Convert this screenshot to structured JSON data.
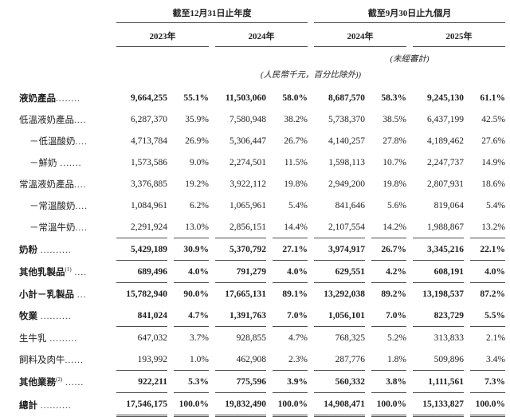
{
  "table": {
    "period_groups": [
      {
        "title": "截至12月31日止年度",
        "years": [
          "2023年",
          "2024年"
        ]
      },
      {
        "title": "截至9月30日止九個月",
        "years": [
          "2024年",
          "2025年"
        ]
      }
    ],
    "unaudited_note": "(未經審計)",
    "currency_note": "(人民幣千元，百分比除外))",
    "rows": [
      {
        "label": "液奶產品",
        "dots": "........",
        "style": "bold",
        "indent": 0,
        "underline": "none",
        "values": [
          "9,664,255",
          "55.1%",
          "11,503,060",
          "58.0%",
          "8,687,570",
          "58.3%",
          "9,245,130",
          "61.1%"
        ]
      },
      {
        "label": "低溫液奶產品",
        "dots": "....",
        "style": "normal",
        "indent": 0,
        "underline": "none",
        "values": [
          "6,287,370",
          "35.9%",
          "7,580,948",
          "38.2%",
          "5,738,370",
          "38.5%",
          "6,437,199",
          "42.5%"
        ]
      },
      {
        "label": "－低溫酸奶",
        "dots": "....",
        "style": "normal",
        "indent": 1,
        "underline": "none",
        "values": [
          "4,713,784",
          "26.9%",
          "5,306,447",
          "26.7%",
          "4,140,257",
          "27.8%",
          "4,189,462",
          "27.6%"
        ]
      },
      {
        "label": "－鮮奶",
        "dots": " .......",
        "style": "normal",
        "indent": 1,
        "underline": "none",
        "values": [
          "1,573,586",
          "9.0%",
          "2,274,501",
          "11.5%",
          "1,598,113",
          "10.7%",
          "2,247,737",
          "14.9%"
        ]
      },
      {
        "label": "常溫液奶產品",
        "dots": "....",
        "style": "normal",
        "indent": 0,
        "underline": "none",
        "values": [
          "3,376,885",
          "19.2%",
          "3,922,112",
          "19.8%",
          "2,949,200",
          "19.8%",
          "2,807,931",
          "18.6%"
        ]
      },
      {
        "label": "－常溫酸奶",
        "dots": "....",
        "style": "normal",
        "indent": 1,
        "underline": "none",
        "values": [
          "1,084,961",
          "6.2%",
          "1,065,961",
          "5.4%",
          "841,646",
          "5.6%",
          "819,064",
          "5.4%"
        ]
      },
      {
        "label": "－常溫牛奶",
        "dots": "....",
        "style": "normal",
        "indent": 1,
        "underline": "single",
        "values": [
          "2,291,924",
          "13.0%",
          "2,856,151",
          "14.4%",
          "2,107,554",
          "14.2%",
          "1,988,867",
          "13.2%"
        ]
      },
      {
        "label": "奶粉",
        "dots": " ..........",
        "style": "bold",
        "indent": 0,
        "underline": "single",
        "values": [
          "5,429,189",
          "30.9%",
          "5,370,792",
          "27.1%",
          "3,974,917",
          "26.7%",
          "3,345,216",
          "22.1%"
        ]
      },
      {
        "label": "其他乳製品",
        "sup": "(1)",
        "dots": " ....",
        "style": "bold",
        "indent": 0,
        "underline": "single",
        "values": [
          "689,496",
          "4.0%",
          "791,279",
          "4.0%",
          "629,551",
          "4.2%",
          "608,191",
          "4.0%"
        ]
      },
      {
        "label": "小計－乳製品",
        "dots": " ...",
        "style": "bold",
        "indent": 0,
        "underline": "none",
        "values": [
          "15,782,940",
          "90.0%",
          "17,665,131",
          "89.1%",
          "13,292,038",
          "89.2%",
          "13,198,537",
          "87.2%"
        ]
      },
      {
        "label": "牧業",
        "dots": " ..........",
        "style": "bold",
        "indent": 0,
        "underline": "single",
        "values": [
          "841,024",
          "4.7%",
          "1,391,763",
          "7.0%",
          "1,056,101",
          "7.0%",
          "823,729",
          "5.5%"
        ]
      },
      {
        "label": "生牛乳",
        "dots": " .........",
        "style": "normal",
        "indent": 0,
        "underline": "none",
        "values": [
          "647,032",
          "3.7%",
          "928,855",
          "4.7%",
          "768,325",
          "5.2%",
          "313,833",
          "2.1%"
        ]
      },
      {
        "label": "飼料及肉牛",
        "dots": "......",
        "style": "normal",
        "indent": 0,
        "underline": "single",
        "values": [
          "193,992",
          "1.0%",
          "462,908",
          "2.3%",
          "287,776",
          "1.8%",
          "509,896",
          "3.4%"
        ]
      },
      {
        "label": "其他業務",
        "sup": "(2)",
        "dots": " ......",
        "style": "bold",
        "indent": 0,
        "underline": "single",
        "values": [
          "922,211",
          "5.3%",
          "775,596",
          "3.9%",
          "560,332",
          "3.8%",
          "1,111,561",
          "7.3%"
        ]
      },
      {
        "label": "總計",
        "dots": " ..........",
        "style": "bold",
        "indent": 0,
        "underline": "double",
        "values": [
          "17,546,175",
          "100.0%",
          "19,832,490",
          "100.0%",
          "14,908,471",
          "100.0%",
          "15,133,827",
          "100.0%"
        ]
      }
    ]
  }
}
